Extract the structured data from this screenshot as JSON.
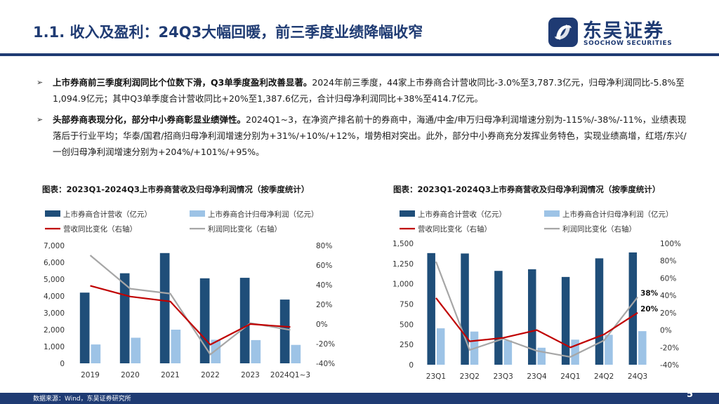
{
  "header": {
    "title": "1.1. 收入及盈利：24Q3大幅回暖，前三季度业绩降幅收窄",
    "logo_name": "东吴证券",
    "logo_sub": "SOOCHOW SECURITIES"
  },
  "bullets": [
    {
      "lead": "上市券商前三季度利润同比个位数下滑，Q3单季度盈利改善显著。",
      "body": "2024年前三季度，44家上市券商合计营收同比-3.0%至3,787.3亿元，归母净利润同比-5.8%至1,094.9亿元；其中Q3单季度合计营收同比+20%至1,387.6亿元，合计归母净利润同比+38%至414.7亿元。"
    },
    {
      "lead": "头部券商表现分化，部分中小券商彰显业绩弹性。",
      "body": "2024Q1~3，在净资产排名前十的券商中，海通/中金/申万归母净利润增速分别为-115%/-38%/-11%，业绩表现落后于行业平均；华泰/国君/招商归母净利润增速分别为+31%/+10%/+12%，增势相对突出。此外，部分中小券商充分发挥业务特色，实现业绩高增，红塔/东兴/一创归母净利润增速分别为+204%/+101%/+95%。"
    }
  ],
  "footer": {
    "source": "数据来源：Wind，东吴证券研究所",
    "page": "5"
  },
  "colors": {
    "navy": "#1f3b73",
    "bar_dark": "#1f4e79",
    "bar_light": "#9dc3e6",
    "line_red": "#c00000",
    "line_gray": "#a6a6a6"
  },
  "chart_data": [
    {
      "type": "bar",
      "title": "图表：2023Q1-2024Q3上市券商营收及归母净利润情况（按季度统计）",
      "categories": [
        "2019",
        "2020",
        "2021",
        "2022",
        "2023",
        "2024Q1~3"
      ],
      "series": [
        {
          "name": "上市券商合计营收（亿元）",
          "kind": "bar",
          "axis": "left",
          "values": [
            4200,
            5350,
            6550,
            5050,
            5080,
            3787
          ]
        },
        {
          "name": "上市券商合计归母净利润（亿元）",
          "kind": "bar",
          "axis": "left",
          "values": [
            1120,
            1520,
            2000,
            1400,
            1380,
            1095
          ]
        },
        {
          "name": "营收同比变化（右轴）",
          "kind": "line",
          "axis": "right",
          "values": [
            0.39,
            0.28,
            0.23,
            -0.21,
            0.0,
            -0.03
          ]
        },
        {
          "name": "利润同比变化（右轴）",
          "kind": "line",
          "axis": "right",
          "values": [
            0.7,
            0.36,
            0.31,
            -0.31,
            0.01,
            -0.06
          ]
        }
      ],
      "yleft": {
        "min": 0,
        "max": 7000,
        "ticks": [
          "0",
          "1,000",
          "2,000",
          "3,000",
          "4,000",
          "5,000",
          "6,000",
          "7,000"
        ]
      },
      "yright": {
        "min": -0.4,
        "max": 0.8,
        "ticks": [
          "-40%",
          "-20%",
          "0%",
          "20%",
          "40%",
          "60%",
          "80%"
        ]
      },
      "legend": "top",
      "annotations": []
    },
    {
      "type": "bar",
      "title": "图表：2023Q1-2024Q3上市券商营收及归母净利润情况（按季度统计）",
      "categories": [
        "23Q1",
        "23Q2",
        "23Q3",
        "23Q4",
        "24Q1",
        "24Q2",
        "24Q3"
      ],
      "series": [
        {
          "name": "上市券商合计营收（亿元）",
          "kind": "bar",
          "axis": "left",
          "values": [
            1380,
            1375,
            1160,
            1180,
            1085,
            1315,
            1388
          ]
        },
        {
          "name": "上市券商合计归母净利润（亿元）",
          "kind": "bar",
          "axis": "left",
          "values": [
            450,
            410,
            300,
            210,
            310,
            370,
            415
          ]
        },
        {
          "name": "营收同比变化（右轴）",
          "kind": "line",
          "axis": "right",
          "values": [
            0.37,
            -0.13,
            -0.09,
            0.0,
            -0.2,
            -0.05,
            0.2
          ]
        },
        {
          "name": "利润同比变化（右轴）",
          "kind": "line",
          "axis": "right",
          "values": [
            0.79,
            -0.23,
            -0.1,
            -0.24,
            -0.31,
            -0.12,
            0.38
          ]
        }
      ],
      "yleft": {
        "min": 0,
        "max": 1500,
        "ticks": [
          "0",
          "250",
          "500",
          "750",
          "1,000",
          "1,250",
          "1,500"
        ]
      },
      "yright": {
        "min": -0.4,
        "max": 1.0,
        "ticks": [
          "-40%",
          "-20%",
          "0%",
          "20%",
          "40%",
          "60%",
          "80%",
          "100%"
        ]
      },
      "legend": "top",
      "annotations": [
        "38%",
        "20%"
      ]
    }
  ]
}
